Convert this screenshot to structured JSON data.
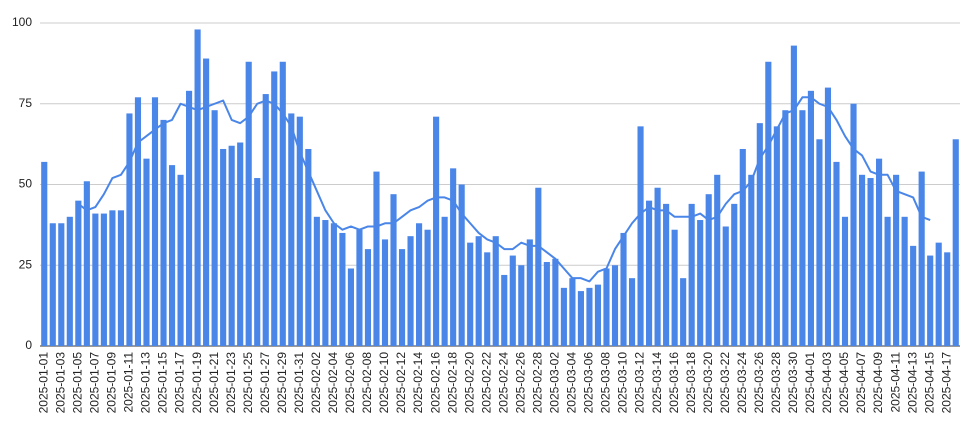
{
  "chart_data": {
    "type": "bar",
    "categories": [
      "2025-01-01",
      null,
      "2025-01-03",
      null,
      "2025-01-05",
      null,
      "2025-01-07",
      null,
      "2025-01-09",
      null,
      "2025-01-11",
      null,
      "2025-01-13",
      null,
      "2025-01-15",
      null,
      "2025-01-17",
      null,
      "2025-01-19",
      null,
      "2025-01-21",
      null,
      "2025-01-23",
      null,
      "2025-01-25",
      null,
      "2025-01-27",
      null,
      "2025-01-29",
      null,
      "2025-01-31",
      null,
      "2025-02-02",
      null,
      "2025-02-04",
      null,
      "2025-02-06",
      null,
      "2025-02-08",
      null,
      "2025-02-10",
      null,
      "2025-02-12",
      null,
      "2025-02-14",
      null,
      "2025-02-16",
      null,
      "2025-02-18",
      null,
      "2025-02-20",
      null,
      "2025-02-22",
      null,
      "2025-02-24",
      null,
      "2025-02-26",
      null,
      "2025-02-28",
      null,
      "2025-03-02",
      null,
      "2025-03-04",
      null,
      "2025-03-06",
      null,
      "2025-03-08",
      null,
      "2025-03-10",
      null,
      "2025-03-12",
      null,
      "2025-03-14",
      null,
      "2025-03-16",
      null,
      "2025-03-18",
      null,
      "2025-03-20",
      null,
      "2025-03-22",
      null,
      "2025-03-24",
      null,
      "2025-03-26",
      null,
      "2025-03-28",
      null,
      "2025-03-30",
      null,
      "2025-04-01",
      null,
      "2025-04-03",
      null,
      "2025-04-05",
      null,
      "2025-04-07",
      null,
      "2025-04-09",
      null,
      "2025-04-11",
      null,
      "2025-04-13",
      null,
      "2025-04-15",
      null,
      "2025-04-17",
      null
    ],
    "series": [
      {
        "type": "bar",
        "color": "#4a86e8",
        "values": [
          57,
          38,
          38,
          40,
          45,
          51,
          41,
          41,
          42,
          42,
          72,
          77,
          58,
          77,
          70,
          56,
          53,
          79,
          98,
          89,
          73,
          61,
          62,
          63,
          88,
          52,
          78,
          85,
          88,
          72,
          71,
          61,
          40,
          39,
          38,
          35,
          24,
          36,
          30,
          54,
          33,
          47,
          30,
          34,
          38,
          36,
          71,
          40,
          55,
          50,
          32,
          34,
          29,
          34,
          22,
          28,
          25,
          33,
          49,
          26,
          27,
          18,
          21,
          17,
          18,
          19,
          24,
          25,
          35,
          21,
          68,
          45,
          49,
          44,
          36,
          21,
          44,
          39,
          47,
          53,
          37,
          44,
          61,
          53,
          69,
          88,
          68,
          73,
          93,
          73,
          79,
          64,
          80,
          57,
          40,
          75,
          53,
          52,
          58,
          40,
          53,
          40,
          31,
          54,
          28,
          32,
          29,
          64
        ]
      },
      {
        "type": "line",
        "color": "#4a86e8",
        "values": [
          null,
          null,
          null,
          null,
          44,
          42,
          43,
          47,
          52,
          53,
          57,
          63,
          65,
          67,
          69,
          70,
          75,
          74,
          73,
          74,
          75,
          76,
          70,
          69,
          71,
          75,
          76,
          75,
          72,
          68,
          60,
          54,
          48,
          42,
          38,
          36,
          37,
          36,
          37,
          37,
          38,
          38,
          40,
          42,
          43,
          45,
          46,
          46,
          45,
          41,
          38,
          35,
          33,
          32,
          30,
          30,
          32,
          31,
          31,
          29,
          27,
          24,
          21,
          21,
          20,
          23,
          24,
          30,
          34,
          38,
          41,
          43,
          42,
          42,
          40,
          40,
          40,
          41,
          39,
          40,
          44,
          47,
          48,
          51,
          58,
          62,
          67,
          72,
          73,
          77,
          77,
          75,
          74,
          70,
          65,
          61,
          59,
          54,
          53,
          53,
          48,
          47,
          46,
          40,
          39,
          null,
          null,
          null
        ]
      }
    ],
    "ylim": [
      0,
      100
    ],
    "yticks": [
      0,
      25,
      50,
      75,
      100
    ],
    "grid": true
  }
}
